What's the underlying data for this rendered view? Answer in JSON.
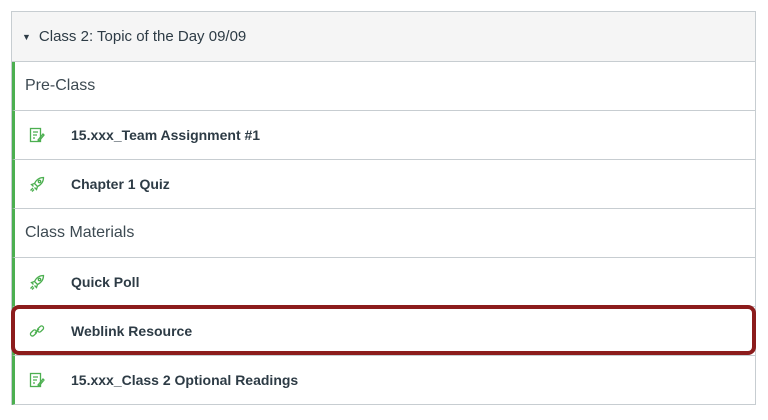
{
  "module": {
    "title": "Class 2: Topic of the Day 09/09",
    "rows": [
      {
        "type": "subheader",
        "label": "Pre-Class"
      },
      {
        "type": "item",
        "icon": "assignment-icon",
        "label": "15.xxx_Team Assignment #1"
      },
      {
        "type": "item",
        "icon": "quiz-rocket-icon",
        "label": "Chapter 1 Quiz"
      },
      {
        "type": "subheader",
        "label": "Class Materials"
      },
      {
        "type": "item",
        "icon": "quiz-rocket-icon",
        "label": "Quick Poll"
      },
      {
        "type": "item",
        "icon": "link-icon",
        "label": "Weblink Resource",
        "highlighted": true
      },
      {
        "type": "item",
        "icon": "assignment-icon",
        "label": "15.xxx_Class 2 Optional Readings"
      }
    ]
  },
  "colors": {
    "accent": "#4caf50",
    "highlight": "#8c1c1c",
    "icon": "#4caf50"
  }
}
